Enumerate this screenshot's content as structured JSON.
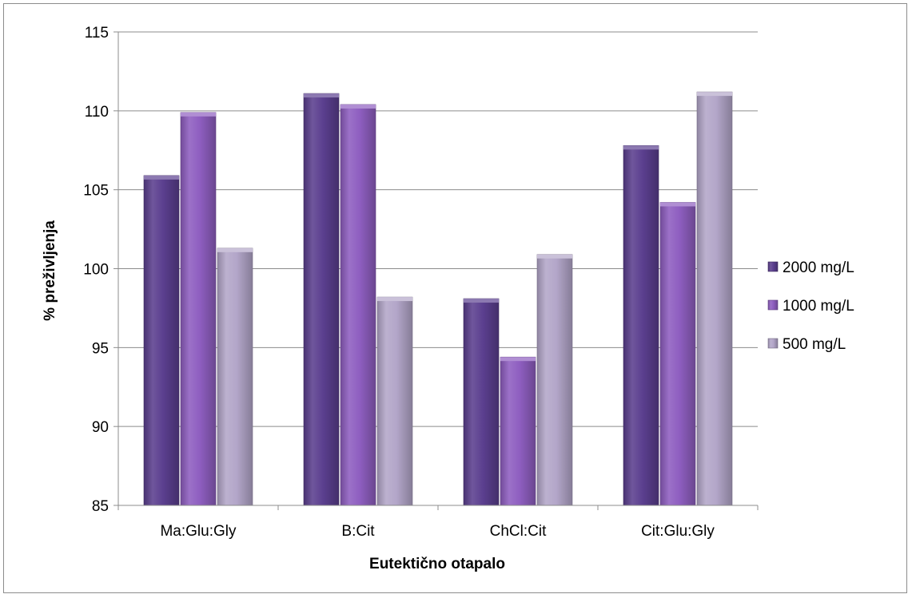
{
  "chart_data": {
    "type": "bar",
    "title": "",
    "xlabel": "Eutektično otapalo",
    "ylabel": "% preživljenja",
    "categories": [
      "Ma:Glu:Gly",
      "B:Cit",
      "ChCl:Cit",
      "Cit:Glu:Gly"
    ],
    "series": [
      {
        "name": "2000 mg/L",
        "values": [
          105.9,
          111.1,
          98.1,
          107.8
        ],
        "color": "#5b3f8f"
      },
      {
        "name": "1000 mg/L",
        "values": [
          109.9,
          110.4,
          94.4,
          104.2
        ],
        "color": "#8e5ec0"
      },
      {
        "name": "500 mg/L",
        "values": [
          101.3,
          98.2,
          100.9,
          111.2
        ],
        "color": "#b3a6c9"
      }
    ],
    "ylim": [
      85,
      115
    ],
    "yticks": [
      85,
      90,
      95,
      100,
      105,
      110,
      115
    ],
    "grid": true,
    "legend_position": "right"
  }
}
